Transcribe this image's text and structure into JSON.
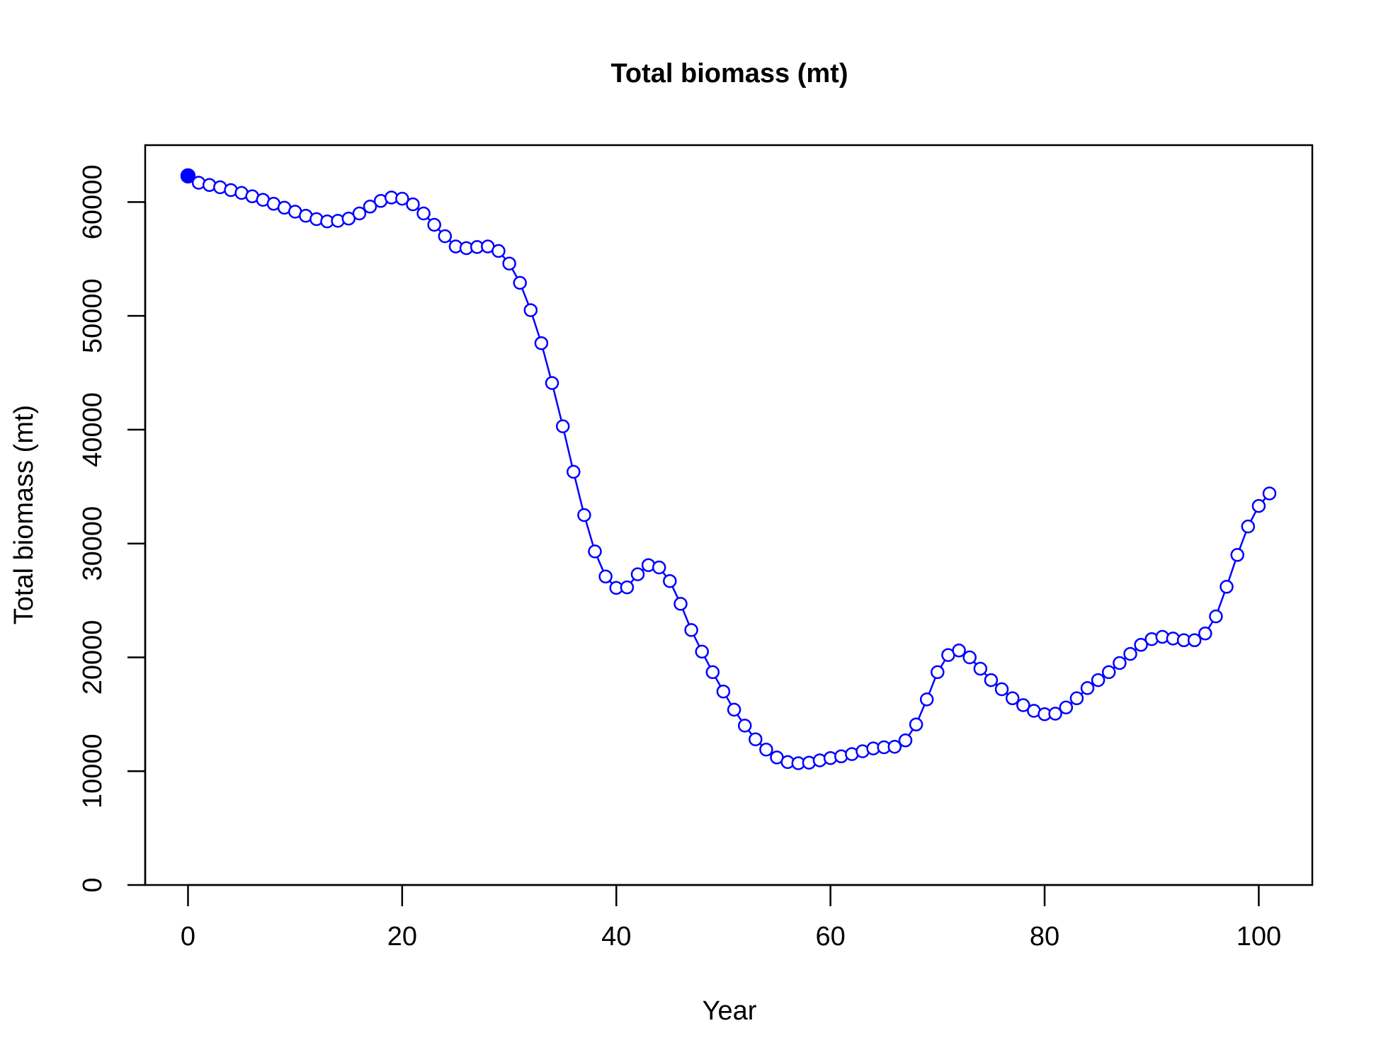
{
  "chart_data": {
    "type": "line",
    "title": "Total biomass (mt)",
    "xlabel": "Year",
    "ylabel": "Total biomass (mt)",
    "xlim": [
      -4,
      105
    ],
    "ylim": [
      0,
      65000
    ],
    "xticks": [
      0,
      20,
      40,
      60,
      80,
      100
    ],
    "yticks": [
      0,
      10000,
      20000,
      30000,
      40000,
      50000,
      60000
    ],
    "grid": false,
    "legend": "none",
    "color": "#0000ff",
    "series": [
      {
        "x": [
          0,
          1,
          2,
          3,
          4,
          5,
          6,
          7,
          8,
          9,
          10,
          11,
          12,
          13,
          14,
          15,
          16,
          17,
          18,
          19,
          20,
          21,
          22,
          23,
          24,
          25,
          26,
          27,
          28,
          29,
          30,
          31,
          32,
          33,
          34,
          35,
          36,
          37,
          38,
          39,
          40,
          41,
          42,
          43,
          44,
          45,
          46,
          47,
          48,
          49,
          50,
          51,
          52,
          53,
          54,
          55,
          56,
          57,
          58,
          59,
          60,
          61,
          62,
          63,
          64,
          65,
          66,
          67,
          68,
          69,
          70,
          71,
          72,
          73,
          74,
          75,
          76,
          77,
          78,
          79,
          80,
          81,
          82,
          83,
          84,
          85,
          86,
          87,
          88,
          89,
          90,
          91,
          92,
          93,
          94,
          95,
          96,
          97,
          98,
          99,
          100,
          101
        ],
        "values": [
          62300,
          61700,
          61500,
          61300,
          61050,
          60800,
          60500,
          60200,
          59850,
          59500,
          59150,
          58800,
          58500,
          58300,
          58350,
          58550,
          59000,
          59600,
          60100,
          60400,
          60300,
          59800,
          59000,
          58000,
          57000,
          56100,
          55950,
          56050,
          56100,
          55700,
          54600,
          52900,
          50500,
          47600,
          44100,
          40300,
          36300,
          32500,
          29300,
          27100,
          26100,
          26150,
          27300,
          28100,
          27900,
          26700,
          24700,
          22400,
          20500,
          18700,
          17000,
          15400,
          14000,
          12800,
          11900,
          11200,
          10800,
          10700,
          10750,
          10950,
          11150,
          11300,
          11500,
          11750,
          12000,
          12100,
          12150,
          12700,
          14100,
          16300,
          18700,
          20200,
          20600,
          20000,
          19000,
          18000,
          17200,
          16400,
          15800,
          15300,
          15000,
          15050,
          15600,
          16400,
          17300,
          18000,
          18700,
          19500,
          20300,
          21100,
          21600,
          21800,
          21650,
          21500,
          21500,
          22100,
          23600,
          26200,
          29000,
          31500,
          33300,
          34400
        ]
      }
    ]
  }
}
